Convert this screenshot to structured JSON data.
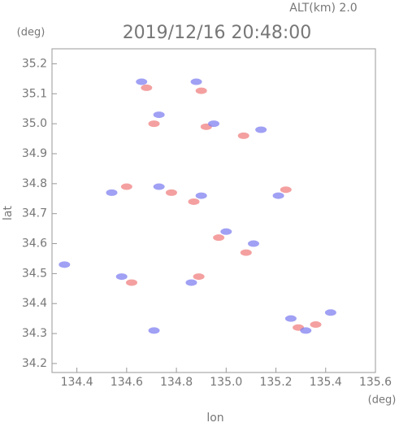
{
  "chart_data": {
    "type": "scatter",
    "title": "2019/12/16 20:48:00",
    "subtitle": "ALT(km) 2.0",
    "x_label": "lon",
    "y_label": "lat",
    "x_unit": "(deg)",
    "y_unit": "(deg)",
    "xlim": [
      134.3,
      135.6
    ],
    "ylim": [
      34.17,
      35.25
    ],
    "xticks": [
      134.4,
      134.6,
      134.8,
      {
        "value": 135,
        "label": "135.0"
      },
      135.2,
      135.4,
      135.6
    ],
    "yticks": [
      34.2,
      34.3,
      34.4,
      34.5,
      34.6,
      34.7,
      34.8,
      34.9,
      {
        "value": 35,
        "label": "35.0"
      },
      35.1,
      35.2
    ],
    "series": [
      {
        "color": "#f08080",
        "x": [
          134.68,
          134.71,
          134.9,
          134.92,
          135.07,
          134.6,
          134.78,
          134.87,
          135.24,
          134.97,
          135.08,
          134.89,
          134.62,
          135.29,
          135.36
        ],
        "y": [
          35.12,
          35.0,
          35.11,
          34.99,
          34.96,
          34.79,
          34.77,
          34.74,
          34.78,
          34.62,
          34.57,
          34.49,
          34.47,
          34.32,
          34.33
        ]
      },
      {
        "color": "#8080f0",
        "x": [
          134.66,
          134.73,
          134.88,
          134.95,
          135.14,
          134.54,
          134.73,
          134.9,
          135.21,
          135.0,
          135.11,
          134.86,
          134.58,
          135.26,
          135.32,
          134.35,
          134.71,
          135.42
        ],
        "y": [
          35.14,
          35.03,
          35.14,
          35.0,
          34.98,
          34.77,
          34.79,
          34.76,
          34.76,
          34.64,
          34.6,
          34.47,
          34.49,
          34.35,
          34.31,
          34.53,
          34.31,
          34.37
        ]
      }
    ]
  }
}
